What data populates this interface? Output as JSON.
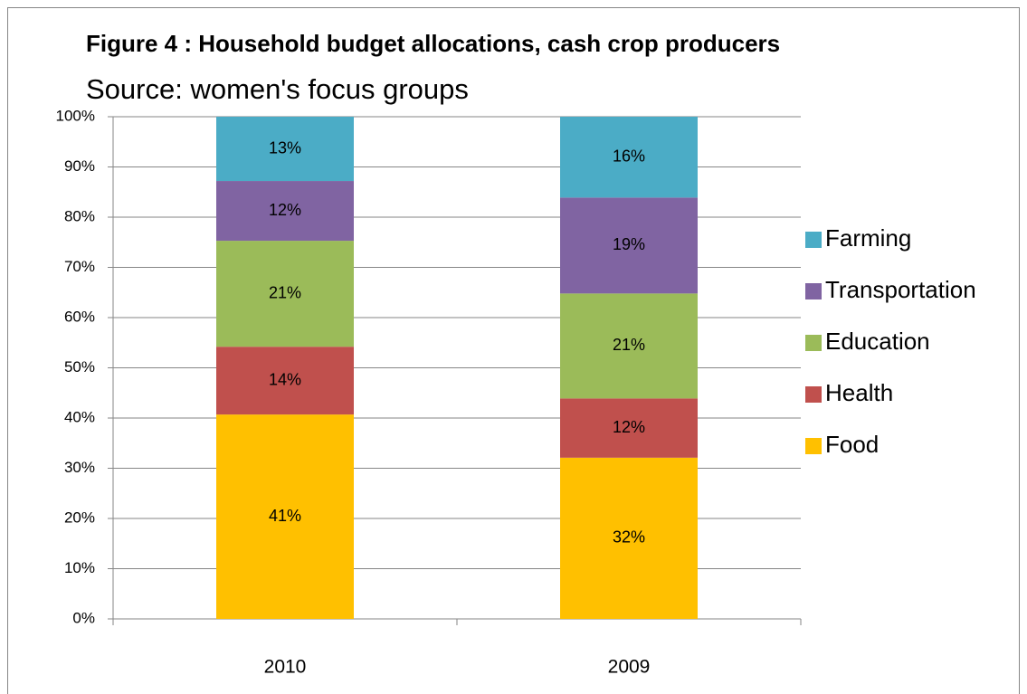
{
  "chart_data": {
    "type": "bar",
    "stacked": true,
    "title": "Figure 4 : Household budget allocations, cash crop producers",
    "subtitle": "Source: women's focus groups",
    "categories": [
      "2010",
      "2009"
    ],
    "series": [
      {
        "name": "Food",
        "color": "#ffc000",
        "values": [
          40.7,
          32.1
        ],
        "value_labels": [
          "41%",
          "32%"
        ]
      },
      {
        "name": "Health",
        "color": "#c0504d",
        "values": [
          13.5,
          11.8
        ],
        "value_labels": [
          "14%",
          "12%"
        ]
      },
      {
        "name": "Education",
        "color": "#9bbb59",
        "values": [
          21.1,
          20.9
        ],
        "value_labels": [
          "21%",
          "21%"
        ]
      },
      {
        "name": "Transportation",
        "color": "#8064a2",
        "values": [
          11.9,
          19.1
        ],
        "value_labels": [
          "12%",
          "19%"
        ]
      },
      {
        "name": "Farming",
        "color": "#4bacc6",
        "values": [
          12.8,
          16.1
        ],
        "value_labels": [
          "13%",
          "16%"
        ]
      }
    ],
    "ylim": [
      0,
      100
    ],
    "yticks": [
      {
        "value": 0,
        "label": "0%"
      },
      {
        "value": 10,
        "label": "10%"
      },
      {
        "value": 20,
        "label": "20%"
      },
      {
        "value": 30,
        "label": "30%"
      },
      {
        "value": 40,
        "label": "40%"
      },
      {
        "value": 50,
        "label": "50%"
      },
      {
        "value": 60,
        "label": "60%"
      },
      {
        "value": 70,
        "label": "70%"
      },
      {
        "value": 80,
        "label": "80%"
      },
      {
        "value": 90,
        "label": "90%"
      },
      {
        "value": 100,
        "label": "100%"
      }
    ],
    "grid": true,
    "legend": "right"
  }
}
